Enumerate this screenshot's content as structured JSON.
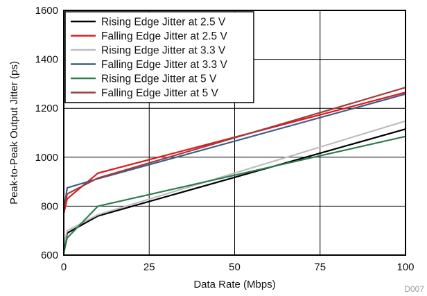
{
  "chart_data": {
    "type": "line",
    "title": "",
    "xlabel": "Data Rate (Mbps)",
    "ylabel": "Peak-to-Peak Output Jitter (ps)",
    "xlim": [
      0,
      100
    ],
    "ylim": [
      600,
      1600
    ],
    "xticks": [
      0,
      25,
      50,
      75,
      100
    ],
    "yticks": [
      600,
      800,
      1000,
      1200,
      1400,
      1600
    ],
    "grid": true,
    "legend_position": "top-left",
    "figure_id": "D007",
    "series": [
      {
        "name": "Rising Edge Jitter at 2.5 V",
        "color": "#000000",
        "x": [
          0,
          1,
          10,
          100
        ],
        "y": [
          620,
          690,
          760,
          1115
        ]
      },
      {
        "name": "Falling Edge Jitter at 2.5 V",
        "color": "#e31a1c",
        "x": [
          0,
          1,
          10,
          100
        ],
        "y": [
          770,
          830,
          935,
          1265
        ]
      },
      {
        "name": "Rising Edge Jitter at 3.3 V",
        "color": "#bdbdbd",
        "x": [
          0,
          1,
          10,
          100
        ],
        "y": [
          640,
          700,
          765,
          1148
        ]
      },
      {
        "name": "Falling Edge Jitter at 3.3 V",
        "color": "#3b6186",
        "x": [
          0,
          1,
          10,
          100
        ],
        "y": [
          780,
          875,
          912,
          1258
        ]
      },
      {
        "name": "Rising Edge Jitter at 5 V",
        "color": "#2e7d4f",
        "x": [
          0,
          1,
          10,
          100
        ],
        "y": [
          610,
          670,
          800,
          1085
        ]
      },
      {
        "name": "Falling Edge Jitter at 5 V",
        "color": "#a33b3e",
        "x": [
          0,
          1,
          10,
          100
        ],
        "y": [
          780,
          850,
          915,
          1285
        ]
      }
    ]
  }
}
